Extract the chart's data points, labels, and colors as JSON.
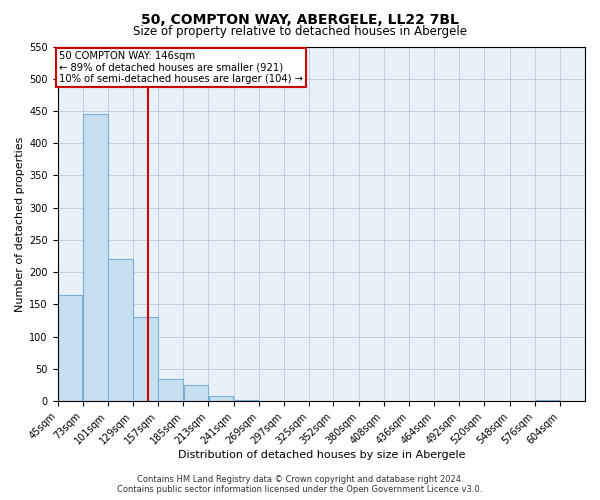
{
  "title": "50, COMPTON WAY, ABERGELE, LL22 7BL",
  "subtitle": "Size of property relative to detached houses in Abergele",
  "xlabel": "Distribution of detached houses by size in Abergele",
  "ylabel": "Number of detached properties",
  "bin_labels": [
    "45sqm",
    "73sqm",
    "101sqm",
    "129sqm",
    "157sqm",
    "185sqm",
    "213sqm",
    "241sqm",
    "269sqm",
    "297sqm",
    "325sqm",
    "352sqm",
    "380sqm",
    "408sqm",
    "436sqm",
    "464sqm",
    "492sqm",
    "520sqm",
    "548sqm",
    "576sqm",
    "604sqm"
  ],
  "bin_left_edges": [
    45,
    73,
    101,
    129,
    157,
    185,
    213,
    241,
    269,
    297,
    325,
    352,
    380,
    408,
    436,
    464,
    492,
    520,
    548,
    576,
    604
  ],
  "bin_width": 28,
  "bar_heights": [
    165,
    445,
    220,
    130,
    35,
    25,
    8,
    2,
    1,
    0,
    1,
    0,
    0,
    0,
    0,
    0,
    0,
    0,
    0,
    2,
    0
  ],
  "bar_facecolor": "#c8dff0",
  "bar_edgecolor": "#7aafd4",
  "vline_x": 146,
  "vline_color": "#cc0000",
  "annotation_text_line1": "50 COMPTON WAY: 146sqm",
  "annotation_text_line2": "← 89% of detached houses are smaller (921)",
  "annotation_text_line3": "10% of semi-detached houses are larger (104) →",
  "annotation_box_edgecolor": "#cc0000",
  "annotation_box_facecolor": "white",
  "ylim": [
    0,
    550
  ],
  "yticks": [
    0,
    50,
    100,
    150,
    200,
    250,
    300,
    350,
    400,
    450,
    500,
    550
  ],
  "footer_line1": "Contains HM Land Registry data © Crown copyright and database right 2024.",
  "footer_line2": "Contains public sector information licensed under the Open Government Licence v3.0.",
  "plot_bg_color": "#e8f0f8",
  "grid_color": "#c0cfe0",
  "title_fontsize": 10,
  "subtitle_fontsize": 8.5,
  "xlabel_fontsize": 8,
  "ylabel_fontsize": 8,
  "tick_fontsize": 7,
  "footer_fontsize": 6
}
